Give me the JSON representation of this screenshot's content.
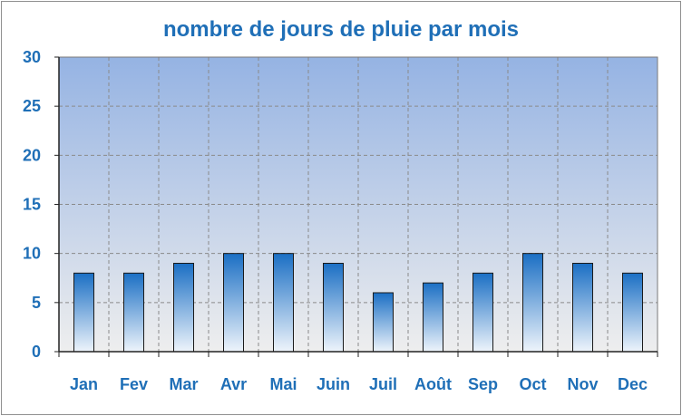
{
  "chart_data": {
    "type": "bar",
    "title": "nombre de jours de pluie par mois",
    "categories": [
      "Jan",
      "Fev",
      "Mar",
      "Avr",
      "Mai",
      "Juin",
      "Juil",
      "Août",
      "Sep",
      "Oct",
      "Nov",
      "Dec"
    ],
    "values": [
      8,
      8,
      9,
      10,
      10,
      9,
      6,
      7,
      8,
      10,
      9,
      8
    ],
    "yticks": [
      "0",
      "5",
      "10",
      "15",
      "20",
      "25",
      "30"
    ],
    "ylim": [
      0,
      30
    ],
    "grid": true,
    "legend": "none",
    "colors": {
      "text": "#1f6fb7",
      "bar_top": "#1b6fc4",
      "bar_bottom": "#eef4fb",
      "plot_top": "#95b3e3",
      "plot_bottom": "#eeeeee",
      "grid": "#8a8a8a"
    }
  }
}
